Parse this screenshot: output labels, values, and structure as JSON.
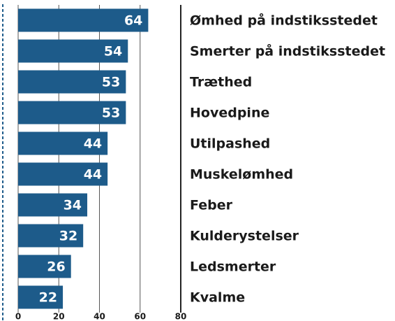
{
  "chart_data": {
    "type": "bar",
    "orientation": "horizontal",
    "categories": [
      "Ømhed på indstiksstedet",
      "Smerter på indstiksstedet",
      "Træthed",
      "Hovedpine",
      "Utilpashed",
      "Muskelømhed",
      "Feber",
      "Kulderystelser",
      "Ledsmerter",
      "Kvalme"
    ],
    "values": [
      64,
      54,
      53,
      53,
      44,
      44,
      34,
      32,
      26,
      22
    ],
    "color": "#1d5b8a",
    "xlim": [
      0,
      80
    ],
    "xticks": [
      0,
      20,
      40,
      60,
      80
    ],
    "grid": true
  }
}
